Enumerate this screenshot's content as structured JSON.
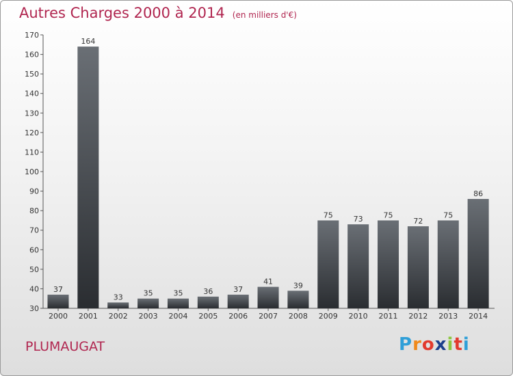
{
  "title": "Autres Charges 2000 à 2014",
  "subtitle": "(en milliers d'€)",
  "commune": "PLUMAUGAT",
  "logo": {
    "letters": [
      "P",
      "r",
      "o",
      "x",
      "i",
      "t",
      "i"
    ],
    "colors": [
      "#2f9fd8",
      "#f08a1c",
      "#e23a2e",
      "#1c3f8c",
      "#8cc63f",
      "#e23a2e",
      "#2f9fd8"
    ]
  },
  "colors": {
    "accent": "#b0254f",
    "bar_top": "#6a6f75",
    "bar_bottom": "#2a2d31"
  },
  "chart_data": {
    "type": "bar",
    "categories": [
      "2000",
      "2001",
      "2002",
      "2003",
      "2004",
      "2005",
      "2006",
      "2007",
      "2008",
      "2009",
      "2010",
      "2011",
      "2012",
      "2013",
      "2014"
    ],
    "values": [
      37,
      164,
      33,
      35,
      35,
      36,
      37,
      41,
      39,
      75,
      73,
      75,
      72,
      75,
      86
    ],
    "ylim": [
      30,
      170
    ],
    "yticks": [
      30,
      40,
      50,
      60,
      70,
      80,
      90,
      100,
      110,
      120,
      130,
      140,
      150,
      160,
      170
    ],
    "grid": false,
    "title": "Autres Charges 2000 à 2014",
    "subtitle": "(en milliers d'€)"
  }
}
